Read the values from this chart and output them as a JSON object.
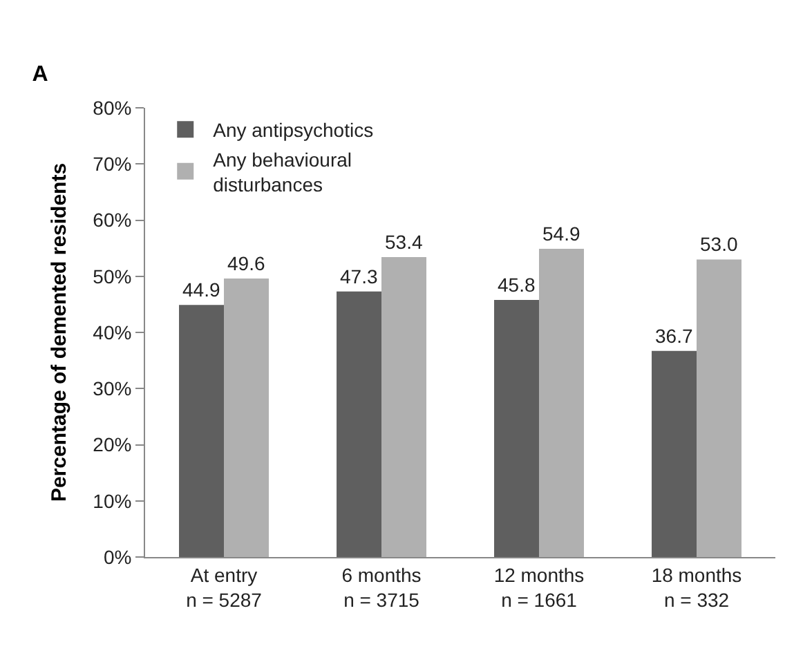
{
  "chart_data": {
    "type": "bar",
    "title": "A",
    "ylabel": "Percentage of demented residents",
    "categories": [
      "At entry\nn = 5287",
      "6 months\nn = 3715",
      "12 months\nn = 1661",
      "18 months\nn = 332"
    ],
    "series": [
      {
        "name": "Any antipsychotics",
        "color": "#5f5f5f",
        "values": [
          44.9,
          47.3,
          45.8,
          36.7
        ],
        "value_labels": [
          "44.9",
          "47.3",
          "45.8",
          "36.7"
        ]
      },
      {
        "name": "Any behavioural\ndisturbances",
        "color": "#b0b0b0",
        "values": [
          49.6,
          53.4,
          54.9,
          53.0
        ],
        "value_labels": [
          "49.6",
          "53.4",
          "54.9",
          "53.0"
        ]
      }
    ],
    "ylim": [
      0,
      80
    ],
    "yticks": [
      {
        "value": 0,
        "label": "0%"
      },
      {
        "value": 10,
        "label": "10%"
      },
      {
        "value": 20,
        "label": "20%"
      },
      {
        "value": 30,
        "label": "30%"
      },
      {
        "value": 40,
        "label": "40%"
      },
      {
        "value": 50,
        "label": "50%"
      },
      {
        "value": 60,
        "label": "60%"
      },
      {
        "value": 70,
        "label": "70%"
      },
      {
        "value": 80,
        "label": "80%"
      }
    ],
    "grid": false,
    "legend": "top left"
  }
}
